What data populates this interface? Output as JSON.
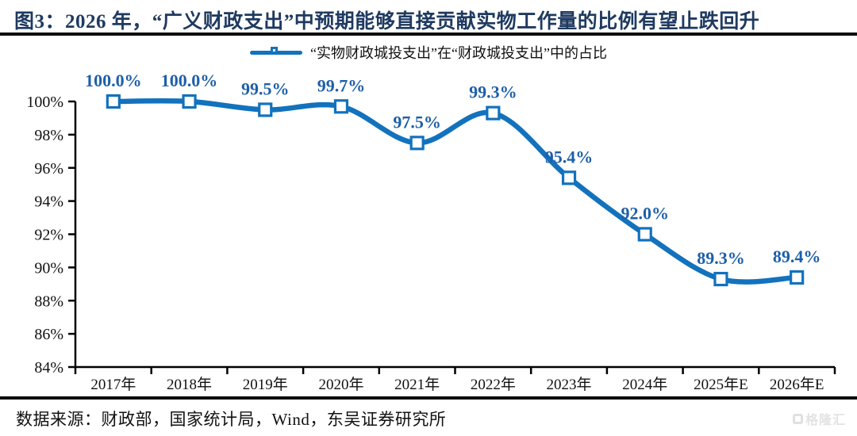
{
  "header": {
    "title": "图3：2026 年，“广义财政支出”中预期能够直接贡献实物工作量的比例有望止跌回升",
    "title_color": "#1F3A60"
  },
  "chart_data": {
    "type": "line",
    "title": "“实物财政城投支出”在“财政城投支出”中的占比",
    "legend": "“实物财政城投支出”在“财政城投支出”中的占比",
    "legend_position": "top-center",
    "categories": [
      "2017年",
      "2018年",
      "2019年",
      "2020年",
      "2021年",
      "2022年",
      "2023年",
      "2024年",
      "2025年E",
      "2026年E"
    ],
    "values": [
      100.0,
      100.0,
      99.5,
      99.7,
      97.5,
      99.3,
      95.4,
      92.0,
      89.3,
      89.4
    ],
    "point_labels": [
      "100.0%",
      "100.0%",
      "99.5%",
      "99.7%",
      "97.5%",
      "99.3%",
      "95.4%",
      "92.0%",
      "89.3%",
      "89.4%"
    ],
    "xlabel": "",
    "ylabel": "",
    "ylim": [
      84,
      100
    ],
    "ytick_step": 2,
    "ytick_labels": [
      "100%",
      "98%",
      "96%",
      "94%",
      "92%",
      "90%",
      "88%",
      "86%",
      "84%"
    ],
    "grid": false,
    "smooth": true,
    "marker": "square-white",
    "line_color": "#1272BD",
    "point_label_color": "#1D5FA9",
    "axis_color": "#000000",
    "tick_label_color": "#111111"
  },
  "footer": {
    "source": "数据来源：财政部，国家统计局，Wind，东吴证券研究所",
    "watermark": "格隆汇"
  }
}
